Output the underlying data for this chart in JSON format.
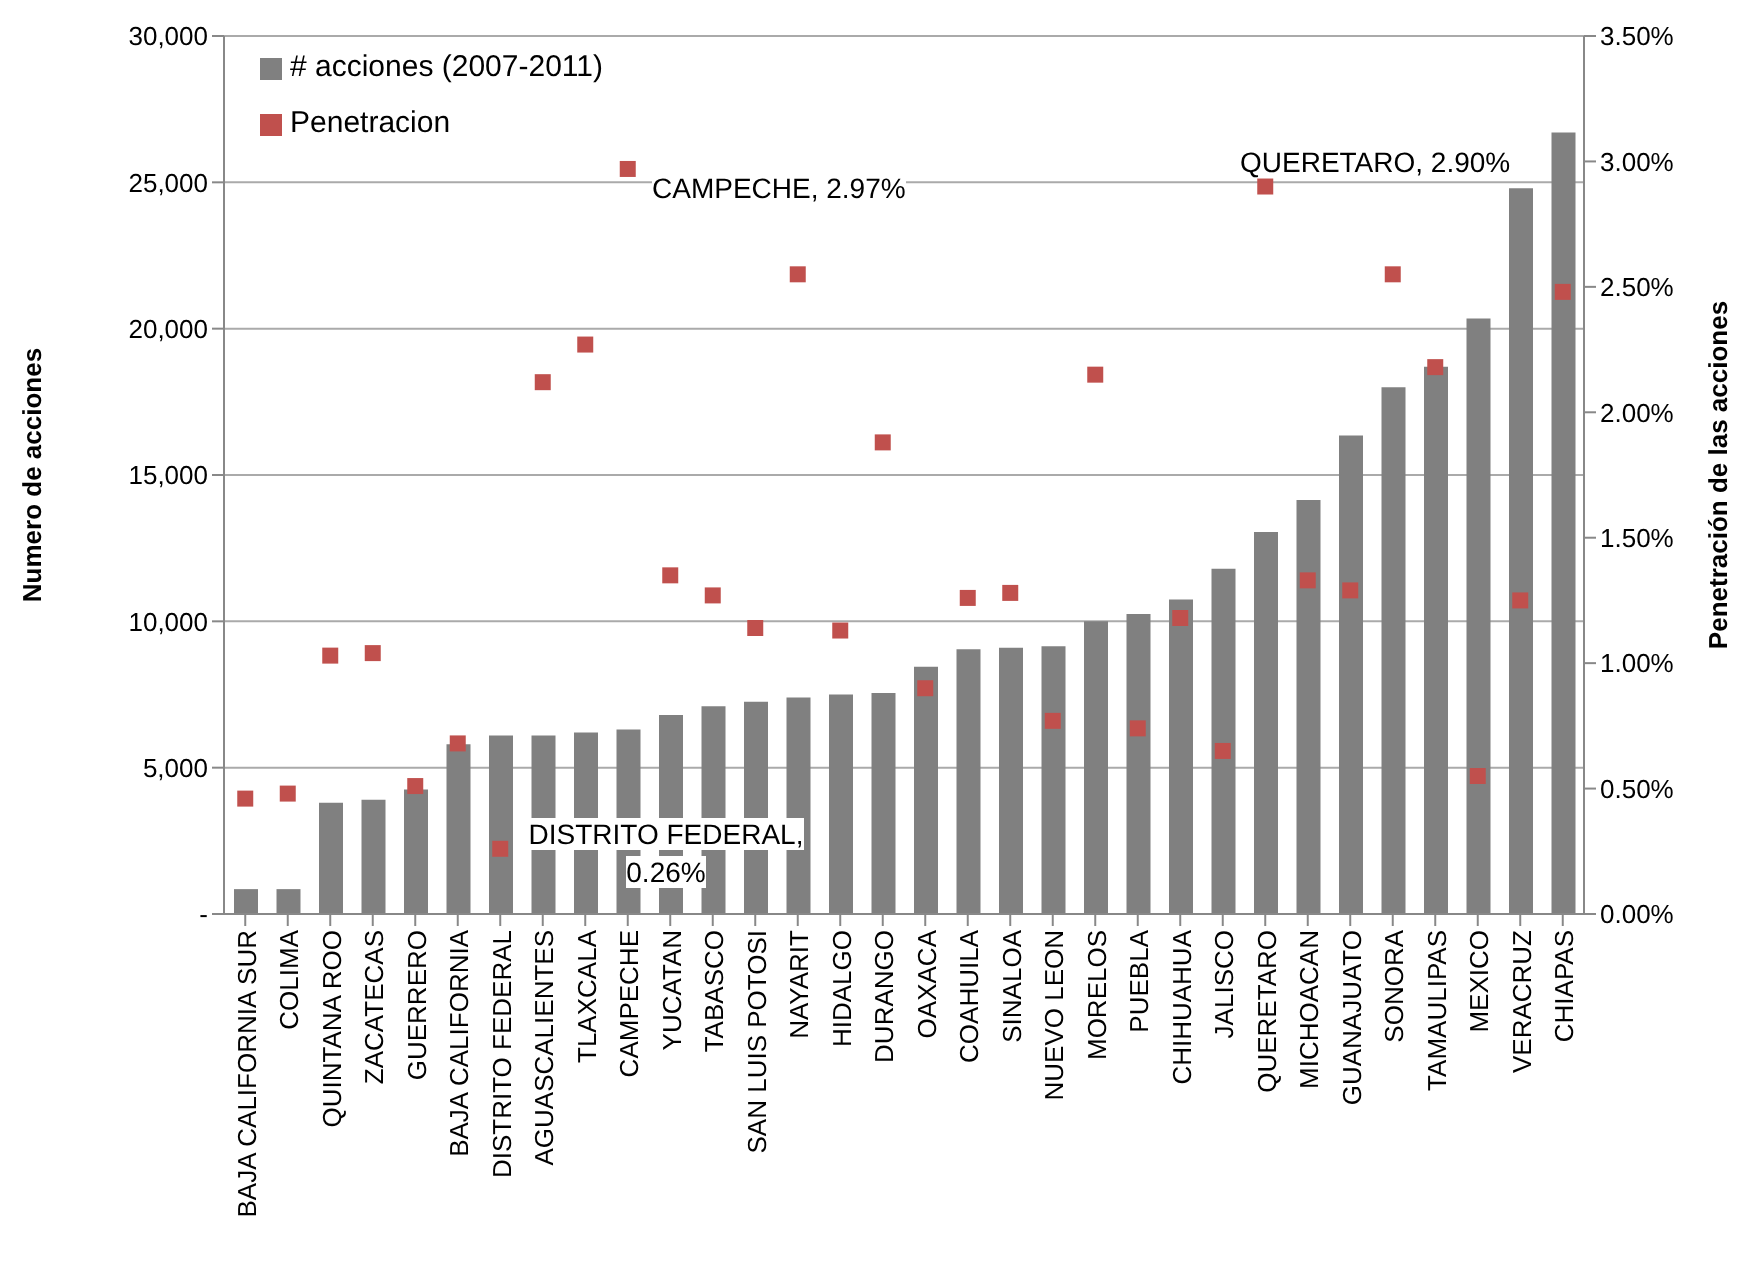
{
  "chart_data": {
    "type": "bar",
    "xlabel": null,
    "ylabel": "Numero de acciones",
    "y2label": "Penetración de las acciones",
    "categories": [
      "BAJA CALIFORNIA SUR",
      "COLIMA",
      "QUINTANA ROO",
      "ZACATECAS",
      "GUERRERO",
      "BAJA CALIFORNIA",
      "DISTRITO FEDERAL",
      "AGUASCALIENTES",
      "TLAXCALA",
      "CAMPECHE",
      "YUCATAN",
      "TABASCO",
      "SAN LUIS POTOSI",
      "NAYARIT",
      "HIDALGO",
      "DURANGO",
      "OAXACA",
      "COAHUILA",
      "SINALOA",
      "NUEVO LEON",
      "MORELOS",
      "PUEBLA",
      "CHIHUAHUA",
      "JALISCO",
      "QUERETARO",
      "MICHOACAN",
      "GUANAJUATO",
      "SONORA",
      "TAMAULIPAS",
      "MEXICO",
      "VERACRUZ",
      "CHIAPAS"
    ],
    "series": [
      {
        "name": "# acciones (2007-2011)",
        "color": "#808080",
        "values": [
          850,
          850,
          3800,
          3900,
          4250,
          5800,
          6100,
          6100,
          6200,
          6300,
          6800,
          7100,
          7250,
          7400,
          7500,
          7550,
          8450,
          9050,
          9100,
          9150,
          10000,
          10250,
          10750,
          11800,
          13050,
          14150,
          16350,
          18000,
          18700,
          20350,
          24800,
          26700
        ]
      },
      {
        "name": "Penetracion",
        "type": "scatter",
        "axis": "y2",
        "color": "#c0504d",
        "marker": "square",
        "values": [
          0.46,
          0.48,
          1.03,
          1.04,
          0.51,
          0.68,
          0.26,
          2.12,
          2.27,
          2.97,
          1.35,
          1.27,
          1.14,
          2.55,
          1.13,
          1.88,
          0.9,
          1.26,
          1.28,
          0.77,
          2.15,
          0.74,
          1.18,
          0.65,
          2.9,
          1.33,
          1.29,
          2.55,
          2.18,
          0.55,
          1.25,
          2.48
        ]
      }
    ],
    "ylim": [
      0,
      30000
    ],
    "yticks": [
      {
        "value": 0,
        "label": "-"
      },
      {
        "value": 5000,
        "label": "5,000"
      },
      {
        "value": 10000,
        "label": "10,000"
      },
      {
        "value": 15000,
        "label": "15,000"
      },
      {
        "value": 20000,
        "label": "20,000"
      },
      {
        "value": 25000,
        "label": "25,000"
      },
      {
        "value": 30000,
        "label": "30,000"
      }
    ],
    "y2lim": [
      0,
      3.5
    ],
    "y2ticks": [
      {
        "value": 0,
        "label": "0.00%"
      },
      {
        "value": 0.5,
        "label": "0.50%"
      },
      {
        "value": 1,
        "label": "1.00%"
      },
      {
        "value": 1.5,
        "label": "1.50%"
      },
      {
        "value": 2,
        "label": "2.00%"
      },
      {
        "value": 2.5,
        "label": "2.50%"
      },
      {
        "value": 3,
        "label": "3.00%"
      },
      {
        "value": 3.5,
        "label": "3.50%"
      }
    ],
    "grid": "y",
    "legend": "top left",
    "annotations": [
      "CAMPECHE, 2.97%",
      "DISTRITO FEDERAL, 0.26%",
      "QUERETARO, 2.90%"
    ]
  }
}
